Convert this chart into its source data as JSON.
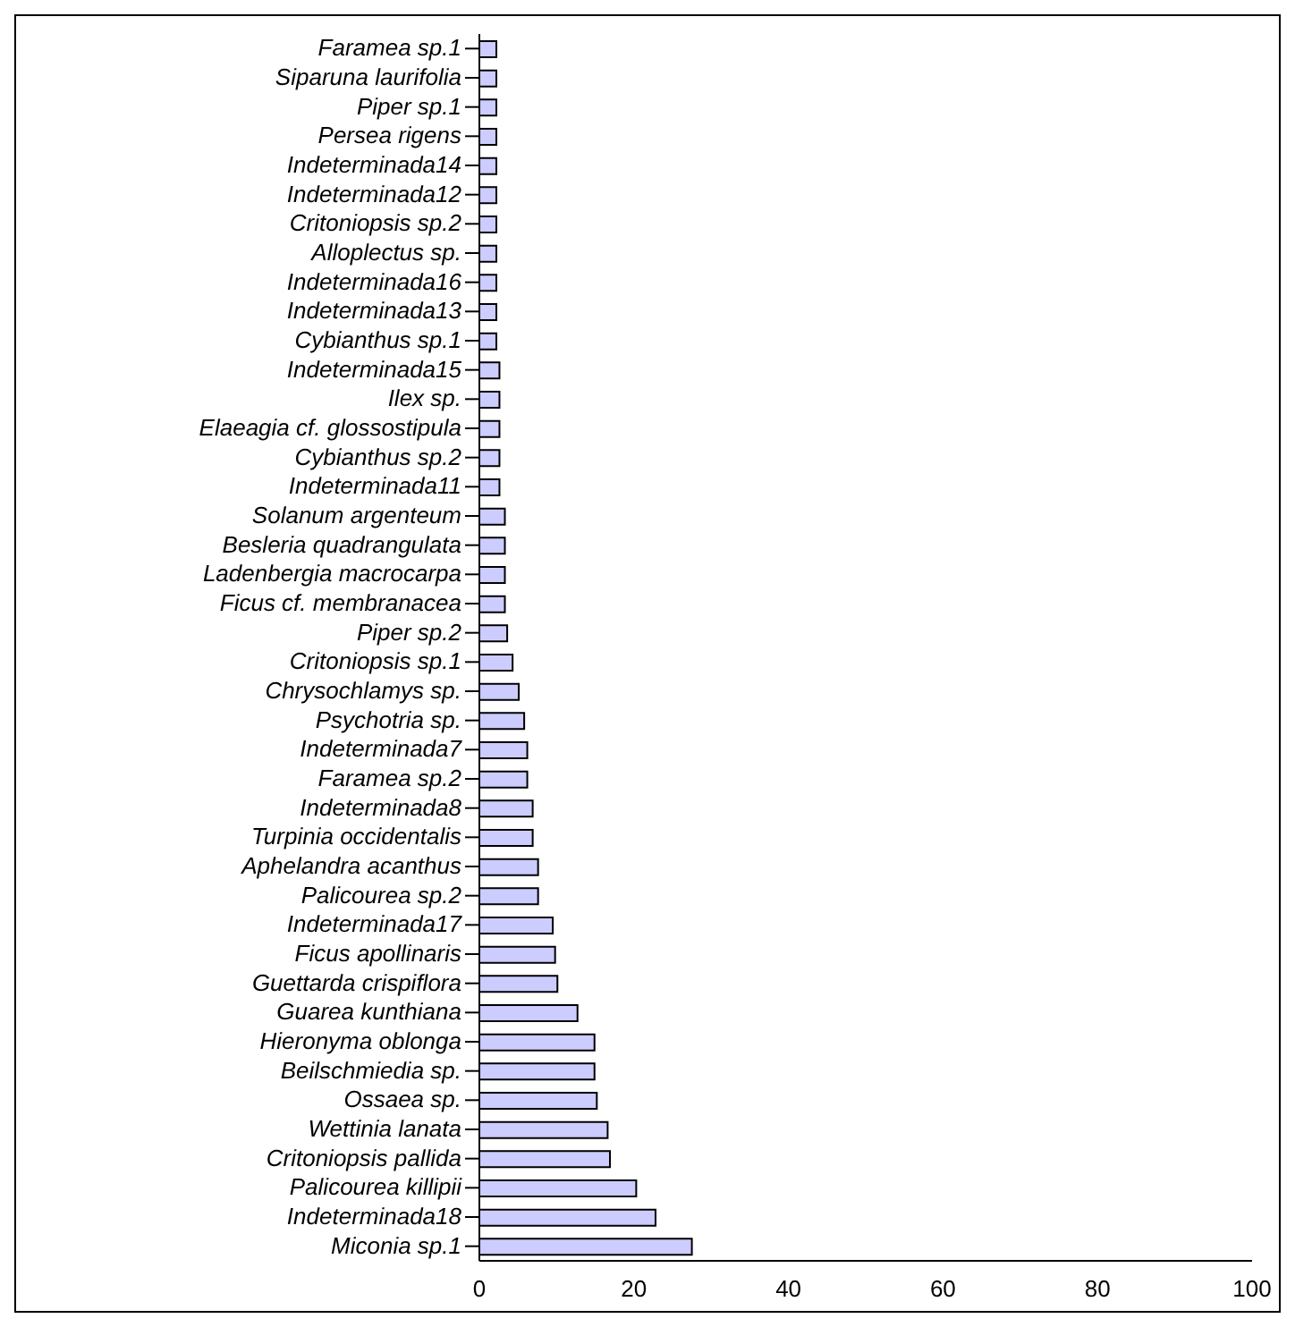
{
  "chart_data": {
    "type": "bar",
    "orientation": "horizontal",
    "categories": [
      "Faramea sp.1",
      "Siparuna laurifolia",
      "Piper sp.1",
      "Persea rigens",
      "Indeterminada14",
      "Indeterminada12",
      "Critoniopsis sp.2",
      "Alloplectus sp.",
      "Indeterminada16",
      "Indeterminada13",
      "Cybianthus sp.1",
      "Indeterminada15",
      "Ilex sp.",
      "Elaeagia cf. glossostipula",
      "Cybianthus sp.2",
      "Indeterminada11",
      "Solanum argenteum",
      "Besleria quadrangulata",
      "Ladenbergia macrocarpa",
      "Ficus cf. membranacea",
      "Piper sp.2",
      "Critoniopsis sp.1",
      "Chrysochlamys sp.",
      "Psychotria sp.",
      "Indeterminada7",
      "Faramea sp.2",
      "Indeterminada8",
      "Turpinia occidentalis",
      "Aphelandra acanthus",
      "Palicourea sp.2",
      "Indeterminada17",
      "Ficus apollinaris",
      "Guettarda crispiflora",
      "Guarea kunthiana",
      "Hieronyma oblonga",
      "Beilschmiedia sp.",
      "Ossaea sp.",
      "Wettinia lanata",
      "Critoniopsis pallida",
      "Palicourea killipii",
      "Indeterminada18",
      "Miconia sp.1"
    ],
    "values": [
      2.2,
      2.2,
      2.2,
      2.2,
      2.2,
      2.2,
      2.2,
      2.2,
      2.2,
      2.2,
      2.2,
      2.6,
      2.6,
      2.6,
      2.6,
      2.6,
      3.3,
      3.3,
      3.3,
      3.3,
      3.6,
      4.3,
      5.1,
      5.8,
      6.2,
      6.2,
      6.9,
      6.9,
      7.6,
      7.6,
      9.5,
      9.8,
      10.1,
      12.7,
      14.9,
      14.9,
      15.2,
      16.6,
      16.9,
      20.3,
      22.8,
      27.5
    ],
    "color": "#ccccff",
    "xlim": [
      0,
      100
    ],
    "xticks": [
      0,
      20,
      40,
      60,
      80,
      100
    ],
    "grid": false,
    "legend": false
  }
}
